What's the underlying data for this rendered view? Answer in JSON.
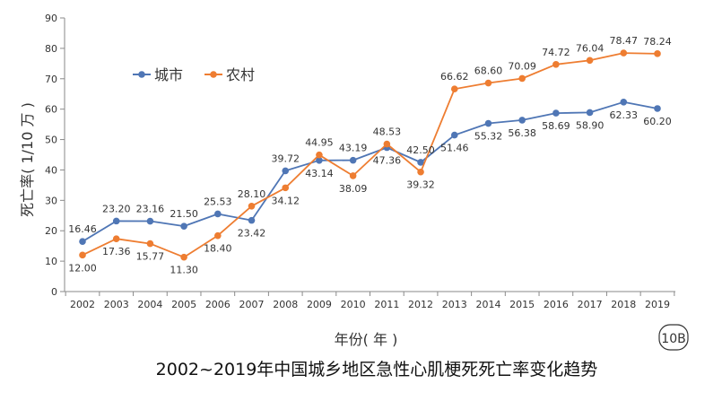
{
  "chart_data": {
    "type": "line",
    "title": "2002~2019年中国城乡地区急性心肌梗死死亡率变化趋势",
    "xlabel": "年份( 年 )",
    "ylabel": "死亡率( 1/10 万 )",
    "x": [
      "2002",
      "2003",
      "2004",
      "2005",
      "2006",
      "2007",
      "2008",
      "2009",
      "2010",
      "2011",
      "2012",
      "2013",
      "2014",
      "2015",
      "2016",
      "2017",
      "2018",
      "2019"
    ],
    "ylim": [
      0,
      90
    ],
    "yticks": [
      0,
      10,
      20,
      30,
      40,
      50,
      60,
      70,
      80,
      90
    ],
    "grid": false,
    "legend_position": "top-left",
    "series": [
      {
        "name": "城市",
        "color": "#4f76b5",
        "values": [
          16.46,
          23.2,
          23.16,
          21.5,
          25.53,
          23.42,
          39.72,
          43.14,
          43.19,
          47.36,
          42.5,
          51.46,
          55.32,
          56.38,
          58.69,
          58.9,
          62.33,
          60.2
        ],
        "labels": [
          "16.46",
          "23.20",
          "23.16",
          "21.50",
          "25.53",
          "23.42",
          "39.72",
          "43.14",
          "43.19",
          "47.36",
          "42.50",
          "51.46",
          "55.32",
          "56.38",
          "58.69",
          "58.90",
          "62.33",
          "60.20"
        ]
      },
      {
        "name": "农村",
        "color": "#ee7d31",
        "values": [
          12.0,
          17.36,
          15.77,
          11.3,
          18.4,
          28.1,
          34.12,
          44.95,
          38.09,
          48.53,
          39.32,
          66.62,
          68.6,
          70.09,
          74.72,
          76.04,
          78.47,
          78.24
        ],
        "labels": [
          "12.00",
          "17.36",
          "15.77",
          "11.30",
          "18.40",
          "28.10",
          "34.12",
          "44.95",
          "38.09",
          "48.53",
          "39.32",
          "66.62",
          "68.60",
          "70.09",
          "74.72",
          "76.04",
          "78.47",
          "78.24"
        ]
      }
    ],
    "badge": "10B"
  }
}
